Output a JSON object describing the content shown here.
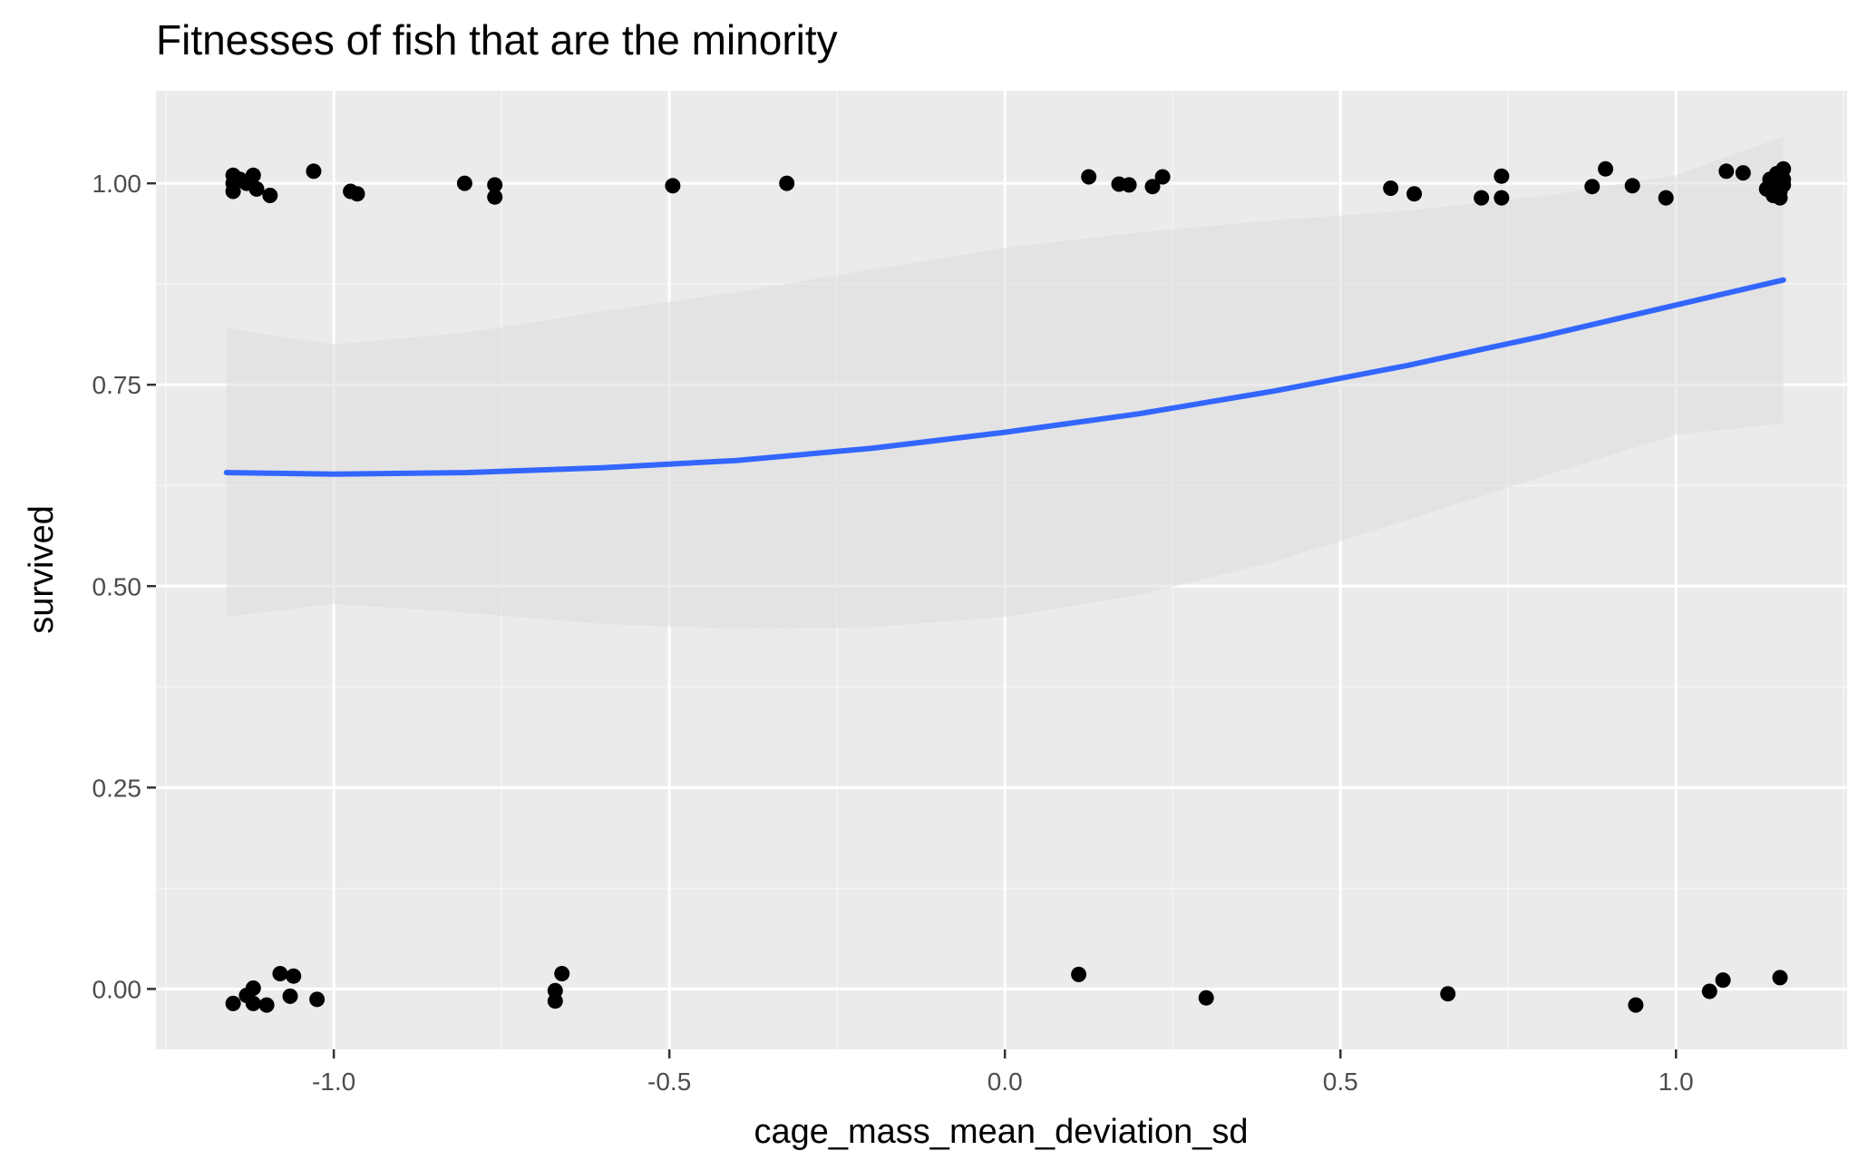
{
  "chart_data": {
    "type": "scatter",
    "title": "Fitnesses of fish that are the minority",
    "xlabel": "cage_mass_mean_deviation_sd",
    "ylabel": "survived",
    "xlim": [
      -1.265,
      1.255
    ],
    "ylim": [
      -0.075,
      1.115
    ],
    "x_ticks": [
      -1.0,
      -0.5,
      0.0,
      0.5,
      1.0
    ],
    "x_tick_labels": [
      "-1.0",
      "-0.5",
      "0.0",
      "0.5",
      "1.0"
    ],
    "y_ticks": [
      0.0,
      0.25,
      0.5,
      0.75,
      1.0
    ],
    "y_tick_labels": [
      "0.00",
      "0.25",
      "0.50",
      "0.75",
      "1.00"
    ],
    "grid": true,
    "colors": {
      "panel_background": "#ebebeb",
      "grid_major": "#ffffff",
      "grid_minor": "#f5f5f5",
      "points": "#000000",
      "smooth_line": "#3366ff",
      "ribbon": "#dcdcdc"
    },
    "series": [
      {
        "name": "observations",
        "points": [
          {
            "x": -1.15,
            "y": 1.01
          },
          {
            "x": -1.15,
            "y": 1.0
          },
          {
            "x": -1.15,
            "y": 0.99
          },
          {
            "x": -1.14,
            "y": 1.005
          },
          {
            "x": -1.13,
            "y": 1.0
          },
          {
            "x": -1.12,
            "y": 1.01
          },
          {
            "x": -1.115,
            "y": 0.993
          },
          {
            "x": -1.095,
            "y": 0.985
          },
          {
            "x": -1.03,
            "y": 1.015
          },
          {
            "x": -0.975,
            "y": 0.99
          },
          {
            "x": -0.965,
            "y": 0.987
          },
          {
            "x": -0.805,
            "y": 1.0
          },
          {
            "x": -0.76,
            "y": 0.998
          },
          {
            "x": -0.76,
            "y": 0.983
          },
          {
            "x": -0.495,
            "y": 0.997
          },
          {
            "x": -0.325,
            "y": 1.0
          },
          {
            "x": 0.125,
            "y": 1.008
          },
          {
            "x": 0.17,
            "y": 0.999
          },
          {
            "x": 0.185,
            "y": 0.998
          },
          {
            "x": 0.22,
            "y": 0.996
          },
          {
            "x": 0.235,
            "y": 1.008
          },
          {
            "x": 0.575,
            "y": 0.994
          },
          {
            "x": 0.61,
            "y": 0.987
          },
          {
            "x": 0.71,
            "y": 0.982
          },
          {
            "x": 0.74,
            "y": 1.009
          },
          {
            "x": 0.74,
            "y": 0.982
          },
          {
            "x": 0.875,
            "y": 0.996
          },
          {
            "x": 0.895,
            "y": 1.018
          },
          {
            "x": 0.935,
            "y": 0.997
          },
          {
            "x": 0.985,
            "y": 0.982
          },
          {
            "x": 1.075,
            "y": 1.015
          },
          {
            "x": 1.1,
            "y": 1.013
          },
          {
            "x": 1.135,
            "y": 0.993
          },
          {
            "x": 1.14,
            "y": 1.005
          },
          {
            "x": 1.145,
            "y": 0.985
          },
          {
            "x": 1.15,
            "y": 1.0
          },
          {
            "x": 1.15,
            "y": 0.995
          },
          {
            "x": 1.15,
            "y": 1.012
          },
          {
            "x": 1.155,
            "y": 0.99
          },
          {
            "x": 1.155,
            "y": 0.982
          },
          {
            "x": 1.16,
            "y": 1.018
          },
          {
            "x": 1.16,
            "y": 1.005
          },
          {
            "x": 1.16,
            "y": 0.998
          },
          {
            "x": -1.15,
            "y": -0.018
          },
          {
            "x": -1.13,
            "y": -0.008
          },
          {
            "x": -1.12,
            "y": 0.001
          },
          {
            "x": -1.12,
            "y": -0.018
          },
          {
            "x": -1.1,
            "y": -0.02
          },
          {
            "x": -1.08,
            "y": 0.019
          },
          {
            "x": -1.065,
            "y": -0.009
          },
          {
            "x": -1.06,
            "y": 0.016
          },
          {
            "x": -1.025,
            "y": -0.013
          },
          {
            "x": -0.67,
            "y": -0.002
          },
          {
            "x": -0.67,
            "y": -0.015
          },
          {
            "x": -0.66,
            "y": 0.019
          },
          {
            "x": 0.11,
            "y": 0.018
          },
          {
            "x": 0.3,
            "y": -0.011
          },
          {
            "x": 0.66,
            "y": -0.006
          },
          {
            "x": 0.94,
            "y": -0.02
          },
          {
            "x": 1.05,
            "y": -0.003
          },
          {
            "x": 1.07,
            "y": 0.011
          },
          {
            "x": 1.155,
            "y": 0.014
          }
        ]
      },
      {
        "name": "smooth",
        "x": [
          -1.16,
          -1.0,
          -0.8,
          -0.6,
          -0.4,
          -0.2,
          0.0,
          0.2,
          0.4,
          0.6,
          0.8,
          1.0,
          1.16
        ],
        "y": [
          0.641,
          0.639,
          0.641,
          0.647,
          0.656,
          0.671,
          0.691,
          0.714,
          0.742,
          0.774,
          0.81,
          0.849,
          0.88
        ],
        "lower": [
          0.462,
          0.478,
          0.467,
          0.453,
          0.447,
          0.449,
          0.462,
          0.489,
          0.53,
          0.582,
          0.636,
          0.688,
          0.702
        ],
        "upper": [
          0.82,
          0.8,
          0.815,
          0.841,
          0.865,
          0.893,
          0.92,
          0.939,
          0.954,
          0.966,
          0.984,
          1.01,
          1.058
        ]
      }
    ]
  }
}
